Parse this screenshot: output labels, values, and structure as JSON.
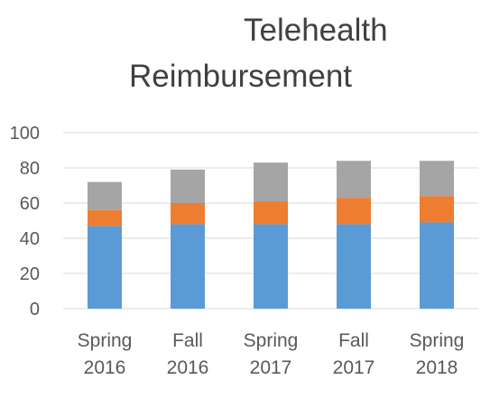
{
  "chart_data": {
    "type": "bar",
    "stacked": true,
    "title": [
      "Telehealth",
      "Reimbursement"
    ],
    "categories": [
      [
        "Spring",
        "2016"
      ],
      [
        "Fall",
        "2016"
      ],
      [
        "Spring",
        "2017"
      ],
      [
        "Fall",
        "2017"
      ],
      [
        "Spring",
        "2018"
      ]
    ],
    "series": [
      {
        "values": [
          47,
          48,
          48,
          48,
          49
        ],
        "color": "#5b9bd5"
      },
      {
        "values": [
          9,
          12,
          13,
          15,
          15
        ],
        "color": "#ed7d31"
      },
      {
        "values": [
          16,
          19,
          22,
          21,
          20
        ],
        "color": "#a5a5a5"
      }
    ],
    "ylim": [
      0,
      100
    ],
    "yticks": [
      "0",
      "20",
      "40",
      "60",
      "80",
      "100"
    ],
    "grid": true,
    "legend": "none"
  }
}
